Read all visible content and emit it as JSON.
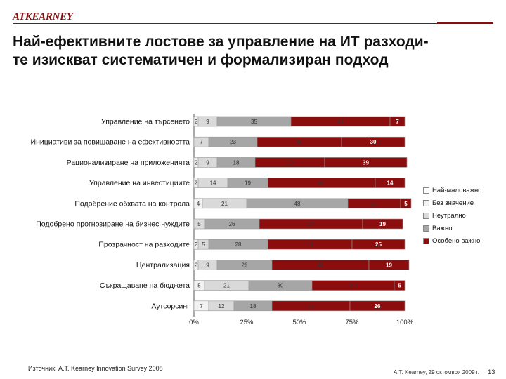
{
  "header": {
    "logo_text": "ATKEARNEY",
    "title_line1": "Най-ефективните лостове за управление на ИТ разходи-",
    "title_line2": "те изискват систематичен и формализиран подход"
  },
  "chart_data": {
    "type": "bar",
    "orientation": "horizontal",
    "stacked": "percent",
    "categories": [
      "Управление на търсенето",
      "Инициативи за повишаване на ефективността",
      "Рационализиране на приложенията",
      "Управление на инвестициите",
      "Подобрение обхвата на контрола",
      "Подобрено прогнозиране на бизнес нуждите",
      "Прозрачност на разходите",
      "Централизация",
      "Съкращаване на бюджета",
      "Аутсорсинг"
    ],
    "series": [
      {
        "name": "Най-маловажно",
        "color": "#ffffff",
        "values": [
          0,
          0,
          0,
          0,
          0,
          0,
          0,
          0,
          0,
          0
        ]
      },
      {
        "name": "Без значение",
        "color": "#f2f2f2",
        "values": [
          2,
          0,
          2,
          2,
          4,
          0,
          2,
          2,
          5,
          7
        ]
      },
      {
        "name": "Неутрално",
        "color": "#d9d9d9",
        "values": [
          9,
          7,
          9,
          14,
          21,
          5,
          5,
          9,
          21,
          12
        ]
      },
      {
        "name": "Важно",
        "color": "#a6a6a6",
        "values": [
          35,
          23,
          18,
          19,
          48,
          26,
          28,
          26,
          30,
          18
        ]
      },
      {
        "name": "Особено важно",
        "color": "#8b0d0d",
        "values": [
          47,
          40,
          33,
          51,
          25,
          49,
          40,
          46,
          39,
          37
        ]
      },
      {
        "name": "",
        "color": "#8b0d0d",
        "values": [
          7,
          30,
          39,
          14,
          5,
          19,
          25,
          19,
          5,
          26
        ]
      }
    ],
    "segment_labels": [
      [
        "2",
        "9",
        "35",
        "47",
        "7"
      ],
      [
        "",
        "7",
        "23",
        "40",
        "30"
      ],
      [
        "2",
        "9",
        "18",
        "33",
        "39"
      ],
      [
        "2",
        "14",
        "19",
        "51",
        "14"
      ],
      [
        "4",
        "21",
        "48",
        "25",
        "5"
      ],
      [
        "",
        "5",
        "26",
        "49",
        "19"
      ],
      [
        "2",
        "5",
        "28",
        "40",
        "25"
      ],
      [
        "2",
        "9",
        "26",
        "46",
        "19"
      ],
      [
        "5",
        "21",
        "30",
        "39",
        "5"
      ],
      [
        "7",
        "12",
        "18",
        "37",
        "26"
      ]
    ],
    "x_ticks": [
      "0%",
      "25%",
      "50%",
      "75%",
      "100%"
    ],
    "xlim": [
      0,
      100
    ],
    "legend": [
      "Най-маловажно",
      "Без значение",
      "Неутрално",
      "Важно",
      "Особено важно"
    ],
    "legend_position": "right"
  },
  "footer": {
    "source": "Източник:  A.T. Kearney Innovation Survey  2008",
    "right_text": "A.T. Kearney, 29 октомври 2009 г.",
    "page_number": "13"
  }
}
